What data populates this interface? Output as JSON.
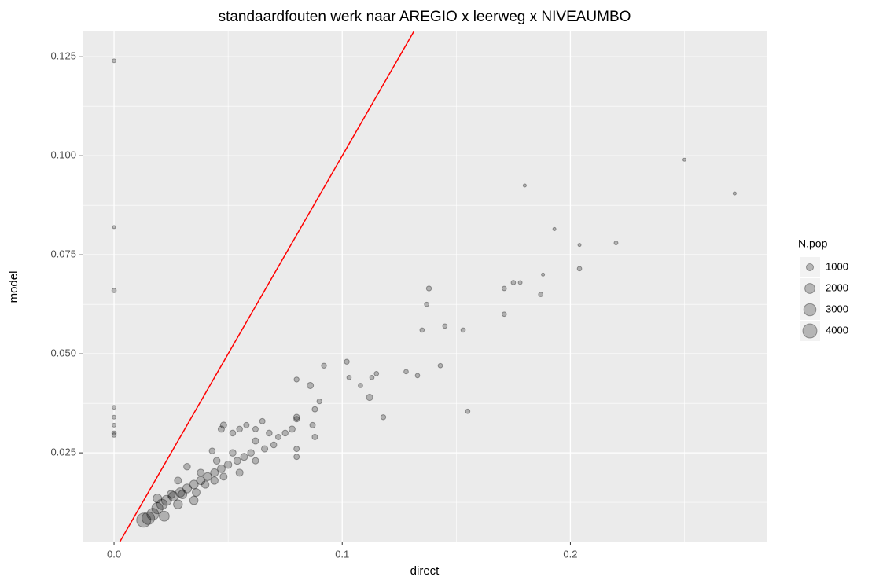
{
  "chart_data": {
    "type": "scatter",
    "title": "standaardfouten werk naar AREGIO x leerweg x NIVEAUMBO",
    "xlabel": "direct",
    "ylabel": "model",
    "xlim": [
      -0.0138,
      0.286
    ],
    "ylim": [
      0.0024,
      0.1314
    ],
    "xticks": [
      {
        "value": 0,
        "label": "0.0"
      },
      0.1,
      0.2
    ],
    "yticks": [
      0.025,
      {
        "value": 0.05,
        "label": "0.050"
      },
      0.075,
      {
        "value": 0.1,
        "label": "0.100"
      },
      0.125
    ],
    "minor_xticks": [
      0.05,
      0.15,
      0.25
    ],
    "minor_yticks": [
      0.0125,
      0.0375,
      0.0625,
      0.0875,
      0.1125
    ],
    "grid": true,
    "color": "#000000",
    "alpha": 0.25,
    "reference_line": {
      "slope": 1,
      "intercept": 0,
      "color": "#ff0000"
    },
    "size_legend": {
      "title": "N.pop",
      "values": [
        1000,
        2000,
        3000,
        4000
      ]
    },
    "x": [
      0,
      0,
      0,
      0,
      0,
      0,
      0,
      0,
      0.25,
      0.272,
      0.18,
      0.193,
      0.204,
      0.22,
      0.204,
      0.188,
      0.171,
      0.175,
      0.178,
      0.187,
      0.171,
      0.138,
      0.137,
      0.135,
      0.145,
      0.153,
      0.155,
      0.143,
      0.128,
      0.133,
      0.102,
      0.103,
      0.108,
      0.113,
      0.115,
      0.118,
      0.112,
      0.092,
      0.08,
      0.086,
      0.09,
      0.088,
      0.087,
      0.08,
      0.08,
      0.078,
      0.075,
      0.072,
      0.068,
      0.065,
      0.062,
      0.058,
      0.055,
      0.052,
      0.048,
      0.047,
      0.043,
      0.088,
      0.08,
      0.08,
      0.07,
      0.066,
      0.06,
      0.057,
      0.054,
      0.05,
      0.047,
      0.044,
      0.041,
      0.038,
      0.035,
      0.032,
      0.029,
      0.026,
      0.023,
      0.021,
      0.019,
      0.017,
      0.015,
      0.013,
      0.028,
      0.03,
      0.036,
      0.04,
      0.045,
      0.052,
      0.062,
      0.038,
      0.025,
      0.032,
      0.028,
      0.044,
      0.055,
      0.035,
      0.022,
      0.019,
      0.062,
      0.048
    ],
    "values": [
      0.124,
      0.082,
      0.066,
      0.0365,
      0.034,
      0.032,
      0.03,
      0.0295,
      0.099,
      0.0905,
      0.0925,
      0.0815,
      0.0775,
      0.078,
      0.0715,
      0.07,
      0.0665,
      0.068,
      0.068,
      0.065,
      0.06,
      0.0665,
      0.0625,
      0.056,
      0.057,
      0.056,
      0.0355,
      0.047,
      0.0455,
      0.0445,
      0.048,
      0.044,
      0.042,
      0.044,
      0.045,
      0.034,
      0.039,
      0.047,
      0.0435,
      0.042,
      0.038,
      0.036,
      0.032,
      0.034,
      0.0335,
      0.031,
      0.03,
      0.029,
      0.03,
      0.033,
      0.031,
      0.032,
      0.031,
      0.03,
      0.032,
      0.031,
      0.0255,
      0.029,
      0.026,
      0.024,
      0.027,
      0.026,
      0.025,
      0.024,
      0.023,
      0.022,
      0.021,
      0.02,
      0.019,
      0.018,
      0.017,
      0.016,
      0.015,
      0.014,
      0.013,
      0.012,
      0.011,
      0.0095,
      0.0085,
      0.008,
      0.018,
      0.0145,
      0.015,
      0.017,
      0.023,
      0.025,
      0.028,
      0.02,
      0.0145,
      0.0215,
      0.012,
      0.018,
      0.02,
      0.013,
      0.009,
      0.0135,
      0.023,
      0.019
    ],
    "sizes": [
      300,
      200,
      400,
      300,
      300,
      300,
      400,
      400,
      200,
      200,
      200,
      200,
      200,
      300,
      400,
      200,
      400,
      400,
      300,
      400,
      400,
      500,
      400,
      400,
      400,
      400,
      400,
      400,
      400,
      400,
      500,
      400,
      400,
      400,
      400,
      500,
      800,
      500,
      500,
      800,
      500,
      600,
      600,
      700,
      600,
      800,
      700,
      600,
      700,
      600,
      600,
      600,
      700,
      700,
      800,
      800,
      700,
      600,
      600,
      600,
      700,
      800,
      900,
      1000,
      1000,
      1100,
      1200,
      1200,
      1300,
      1400,
      1500,
      1600,
      1700,
      1800,
      2000,
      2200,
      2500,
      2800,
      3200,
      4000,
      1000,
      1500,
      1200,
      1100,
      900,
      900,
      800,
      1000,
      1300,
      900,
      1600,
      1100,
      1000,
      1400,
      2000,
      1500,
      800,
      1000
    ]
  }
}
